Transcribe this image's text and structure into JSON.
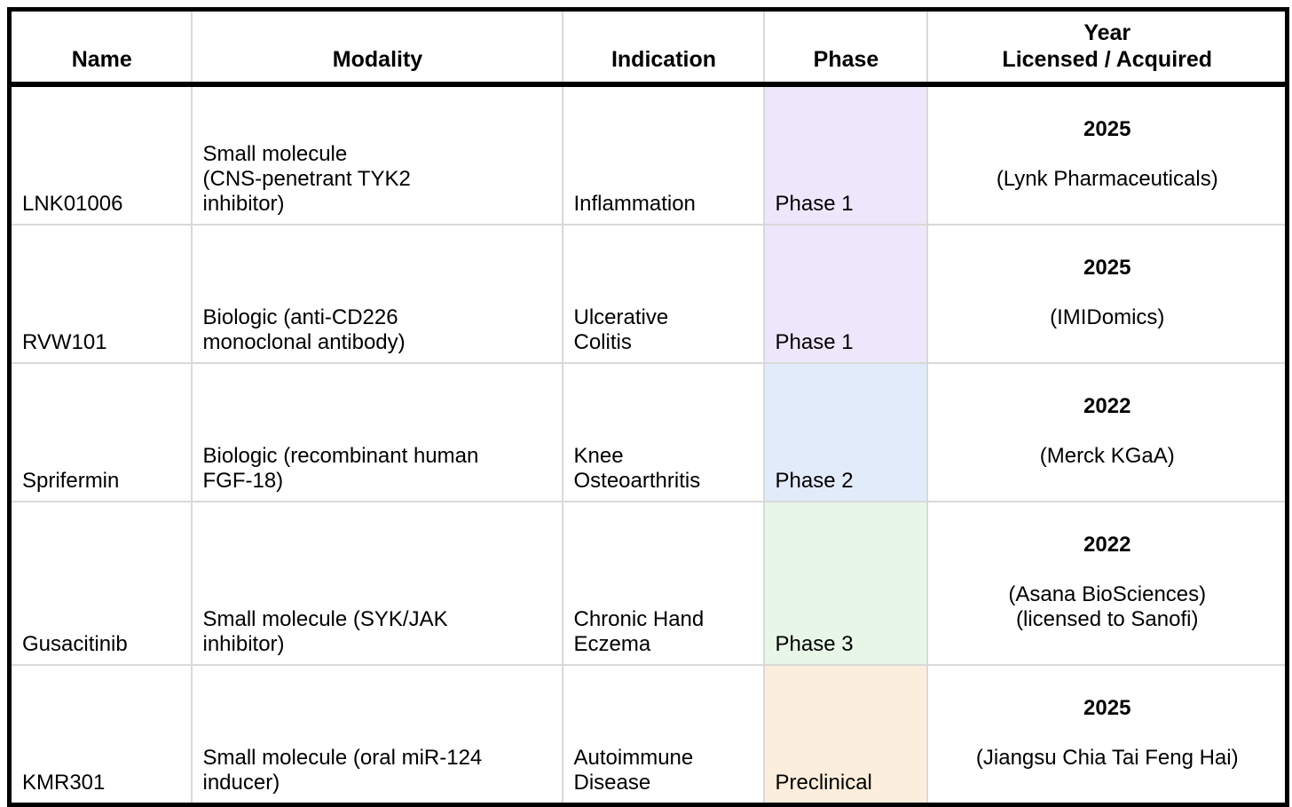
{
  "chart_data": {
    "type": "table",
    "columns": [
      "Name",
      "Modality",
      "Indication",
      "Phase",
      [
        "Year",
        "Licensed / Acquired"
      ]
    ],
    "rows": [
      {
        "name": "LNK01006",
        "modality_lines": [
          "Small molecule",
          "(CNS-penetrant TYK2",
          "inhibitor)"
        ],
        "indication_lines": [
          "Inflammation"
        ],
        "phase": "Phase 1",
        "phase_color": "#EDE7FB",
        "year": "2025",
        "source_lines": [
          "(Lynk Pharmaceuticals)"
        ]
      },
      {
        "name": "RVW101",
        "modality_lines": [
          "Biologic (anti-CD226",
          "monoclonal antibody)"
        ],
        "indication_lines": [
          "Ulcerative",
          "Colitis"
        ],
        "phase": "Phase 1",
        "phase_color": "#EDE7FB",
        "year": "2025",
        "source_lines": [
          "(IMIDomics)"
        ]
      },
      {
        "name": "Sprifermin",
        "modality_lines": [
          "Biologic (recombinant human",
          "FGF-18)"
        ],
        "indication_lines": [
          "Knee",
          "Osteoarthritis"
        ],
        "phase": "Phase 2",
        "phase_color": "#E2EBFA",
        "year": "2022",
        "source_lines": [
          "(Merck KGaA)"
        ]
      },
      {
        "name": "Gusacitinib",
        "modality_lines": [
          "Small molecule (SYK/JAK",
          "inhibitor)"
        ],
        "indication_lines": [
          "Chronic Hand",
          "Eczema"
        ],
        "phase": "Phase 3",
        "phase_color": "#E7F6E7",
        "year": "2022",
        "source_lines": [
          "(Asana BioSciences)",
          "(licensed to Sanofi)"
        ]
      },
      {
        "name": "KMR301",
        "modality_lines": [
          "Small molecule (oral miR-124",
          "inducer)"
        ],
        "indication_lines": [
          "Autoimmune",
          "Disease"
        ],
        "phase": "Preclinical",
        "phase_color": "#FCEEDC",
        "year": "2025",
        "source_lines": [
          "(Jiangsu Chia Tai Feng Hai)"
        ]
      }
    ],
    "legend": {
      "phase_1_color": "#EDE7FB",
      "phase_2_color": "#E2EBFA",
      "phase_3_color": "#E7F6E7",
      "preclinical_color": "#FCEEDC"
    }
  }
}
